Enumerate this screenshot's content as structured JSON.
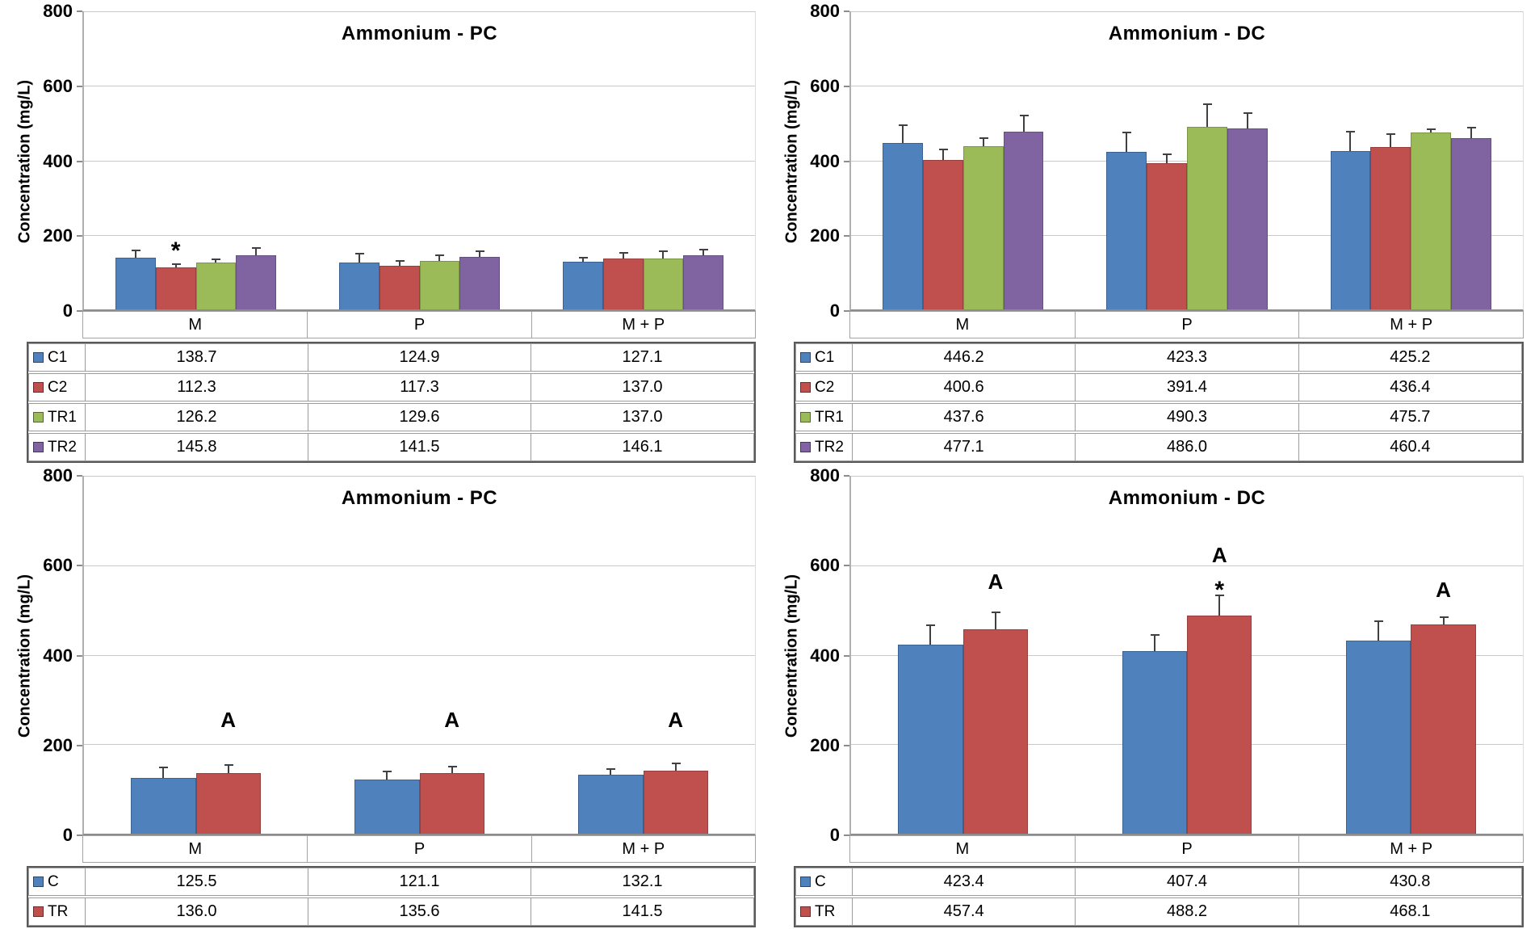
{
  "figure": {
    "background": "#ffffff",
    "axis_color": "#8c8c8c",
    "gridline_color": "#c9c9c9",
    "error_bar_color": "#404040"
  },
  "chart_data": [
    {
      "type": "bar",
      "position": "top-left",
      "title": "Ammonium - PC",
      "ylabel": "Concentration (mg/L)",
      "ylim": [
        0,
        800
      ],
      "yticks": [
        0,
        200,
        400,
        600,
        800
      ],
      "grid": true,
      "legend_position": "table-left",
      "categories": [
        "M",
        "P",
        "M + P"
      ],
      "series": [
        {
          "name": "C1",
          "color": "#4F81BD",
          "edge": "#3A6191",
          "values": [
            138.7,
            124.9,
            127.1
          ],
          "errors_up": [
            20,
            25,
            12
          ]
        },
        {
          "name": "C2",
          "color": "#C0504D",
          "edge": "#96403E",
          "values": [
            112.3,
            117.3,
            137.0
          ],
          "errors_up": [
            10,
            12,
            15
          ]
        },
        {
          "name": "TR1",
          "color": "#9BBB59",
          "edge": "#7A9645",
          "values": [
            126.2,
            129.6,
            137.0
          ],
          "errors_up": [
            8,
            15,
            20
          ]
        },
        {
          "name": "TR2",
          "color": "#8064A2",
          "edge": "#64507F",
          "values": [
            145.8,
            141.5,
            146.1
          ],
          "errors_up": [
            18,
            15,
            15
          ]
        }
      ],
      "table": {
        "rows": [
          [
            "138.7",
            "124.9",
            "127.1"
          ],
          [
            "112.3",
            "117.3",
            "137.0"
          ],
          [
            "126.2",
            "129.6",
            "137.0"
          ],
          [
            "145.8",
            "141.5",
            "146.1"
          ]
        ]
      },
      "annotations": [
        {
          "text": "*",
          "category_index": 0,
          "series_index": 1,
          "value": 138
        }
      ]
    },
    {
      "type": "bar",
      "position": "top-right",
      "title": "Ammonium - DC",
      "ylabel": "Concentration (mg/L)",
      "ylim": [
        0,
        800
      ],
      "yticks": [
        0,
        200,
        400,
        600,
        800
      ],
      "grid": true,
      "legend_position": "table-left",
      "categories": [
        "M",
        "P",
        "M + P"
      ],
      "series": [
        {
          "name": "C1",
          "color": "#4F81BD",
          "edge": "#3A6191",
          "values": [
            446.2,
            423.3,
            425.2
          ],
          "errors_up": [
            49,
            52,
            52
          ]
        },
        {
          "name": "C2",
          "color": "#C0504D",
          "edge": "#96403E",
          "values": [
            400.6,
            391.4,
            436.4
          ],
          "errors_up": [
            28,
            25,
            34
          ]
        },
        {
          "name": "TR1",
          "color": "#9BBB59",
          "edge": "#7A9645",
          "values": [
            437.6,
            490.3,
            475.7
          ],
          "errors_up": [
            22,
            60,
            8
          ]
        },
        {
          "name": "TR2",
          "color": "#8064A2",
          "edge": "#64507F",
          "values": [
            477.1,
            486.0,
            460.4
          ],
          "errors_up": [
            44,
            40,
            28
          ]
        }
      ],
      "table": {
        "rows": [
          [
            "446.2",
            "423.3",
            "425.2"
          ],
          [
            "400.6",
            "391.4",
            "436.4"
          ],
          [
            "437.6",
            "490.3",
            "475.7"
          ],
          [
            "477.1",
            "486.0",
            "460.4"
          ]
        ]
      },
      "annotations": []
    },
    {
      "type": "bar",
      "position": "bottom-left",
      "title": "Ammonium - PC",
      "ylabel": "Concentration (mg/L)",
      "ylim": [
        0,
        800
      ],
      "yticks": [
        0,
        200,
        400,
        600,
        800
      ],
      "grid": true,
      "legend_position": "table-left",
      "categories": [
        "M",
        "P",
        "M + P"
      ],
      "series": [
        {
          "name": "C",
          "color": "#4F81BD",
          "edge": "#3A6191",
          "values": [
            125.5,
            121.1,
            132.1
          ],
          "errors_up": [
            23,
            18,
            13
          ]
        },
        {
          "name": "TR",
          "color": "#C0504D",
          "edge": "#96403E",
          "values": [
            136.0,
            135.6,
            141.5
          ],
          "errors_up": [
            18,
            15,
            16
          ]
        }
      ],
      "table": {
        "rows": [
          [
            "125.5",
            "121.1",
            "132.1"
          ],
          [
            "136.0",
            "135.6",
            "141.5"
          ]
        ]
      },
      "annotations": [
        {
          "text": "A",
          "category_index": 0,
          "series_index": 1,
          "value": 232
        },
        {
          "text": "A",
          "category_index": 1,
          "series_index": 1,
          "value": 232
        },
        {
          "text": "A",
          "category_index": 2,
          "series_index": 1,
          "value": 232
        }
      ]
    },
    {
      "type": "bar",
      "position": "bottom-right",
      "title": "Ammonium - DC",
      "ylabel": "Concentration (mg/L)",
      "ylim": [
        0,
        800
      ],
      "yticks": [
        0,
        200,
        400,
        600,
        800
      ],
      "grid": true,
      "legend_position": "table-left",
      "categories": [
        "M",
        "P",
        "M + P"
      ],
      "series": [
        {
          "name": "C",
          "color": "#4F81BD",
          "edge": "#3A6191",
          "values": [
            423.4,
            407.4,
            430.8
          ],
          "errors_up": [
            42,
            36,
            44
          ]
        },
        {
          "name": "TR",
          "color": "#C0504D",
          "edge": "#96403E",
          "values": [
            457.4,
            488.2,
            468.1
          ],
          "errors_up": [
            37,
            44,
            15
          ]
        }
      ],
      "table": {
        "rows": [
          [
            "423.4",
            "407.4",
            "430.8"
          ],
          [
            "457.4",
            "488.2",
            "468.1"
          ]
        ]
      },
      "annotations": [
        {
          "text": "A",
          "category_index": 0,
          "series_index": 1,
          "value": 540
        },
        {
          "text": "A",
          "category_index": 1,
          "series_index": 1,
          "value": 600
        },
        {
          "text": "*",
          "category_index": 1,
          "series_index": 1,
          "value": 528
        },
        {
          "text": "A",
          "category_index": 2,
          "series_index": 1,
          "value": 522
        }
      ]
    }
  ]
}
